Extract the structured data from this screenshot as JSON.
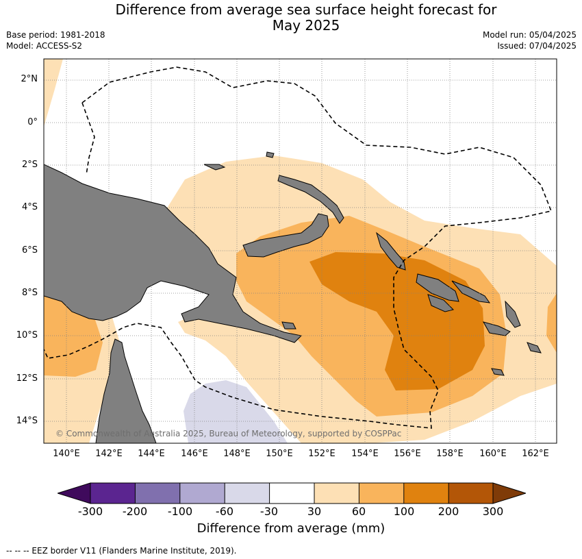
{
  "title_line1": "Difference from average sea surface height forecast for",
  "title_line2": "May 2025",
  "base_period": "Base period: 1981-2018",
  "model": "Model: ACCESS-S2",
  "model_run": "Model run: 05/04/2025",
  "issued": "Issued: 07/04/2025",
  "lat_labels": [
    "2°N",
    "0°",
    "2°S",
    "4°S",
    "6°S",
    "8°S",
    "10°S",
    "12°S",
    "14°S"
  ],
  "lon_labels": [
    "140°E",
    "142°E",
    "144°E",
    "146°E",
    "148°E",
    "150°E",
    "152°E",
    "154°E",
    "156°E",
    "158°E",
    "160°E",
    "162°E"
  ],
  "copyright": "© Commonwealth of Australia 2025, Bureau of Meteorology, supported by COSPPac",
  "legend": {
    "title": "Difference from average (mm)",
    "ticks": [
      "-300",
      "-200",
      "-100",
      "-60",
      "-30",
      "30",
      "60",
      "100",
      "200",
      "300"
    ],
    "colors": [
      "#3f0a5c",
      "#5b2590",
      "#8070ae",
      "#b0a9d1",
      "#d9d9e9",
      "#ffffff",
      "#fde0b5",
      "#f9b45c",
      "#e0820f",
      "#b35607",
      "#7f3b08"
    ]
  },
  "footer": "--  --  -- EEZ border V11 (Flanders Marine Institute, 2019).",
  "colors": {
    "land": "#808080",
    "eez": "#000000",
    "grid": "#808080"
  }
}
